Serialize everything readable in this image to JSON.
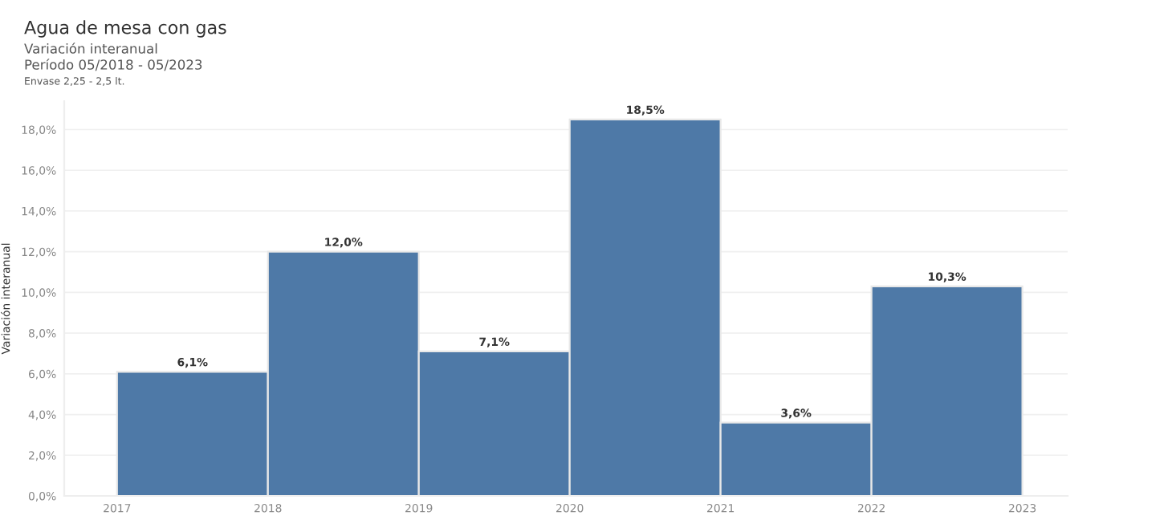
{
  "chart_data": {
    "type": "histogram",
    "title": "Agua de mesa con gas",
    "subtitle": "Variación interanual\nPeríodo 05/2018 - 05/2023",
    "annotations": [
      "Envase 2,25 - 2,5 lt."
    ],
    "ylabel": "Variación interanual",
    "bins": [
      2017,
      2018,
      2019,
      2020,
      2021,
      2022,
      2023
    ],
    "values": [
      6.1,
      12.0,
      7.1,
      18.5,
      3.6,
      10.3
    ],
    "value_labels": [
      "6,1%",
      "12,0%",
      "7,1%",
      "18,5%",
      "3,6%",
      "10,3%"
    ],
    "color": "#4e79a7",
    "xlim": [
      2016.65,
      2023.3
    ],
    "xticks": [
      2017,
      2018,
      2019,
      2020,
      2021,
      2022,
      2023
    ],
    "ylim": [
      0,
      19.4
    ],
    "yticks": [
      {
        "value": 0,
        "label": "0,0%"
      },
      {
        "value": 2,
        "label": "2,0%"
      },
      {
        "value": 4,
        "label": "4,0%"
      },
      {
        "value": 6,
        "label": "6,0%"
      },
      {
        "value": 8,
        "label": "8,0%"
      },
      {
        "value": 10,
        "label": "10,0%"
      },
      {
        "value": 12,
        "label": "12,0%"
      },
      {
        "value": 14,
        "label": "14,0%"
      },
      {
        "value": 16,
        "label": "16,0%"
      },
      {
        "value": 18,
        "label": "18,0%"
      }
    ],
    "grid": "y",
    "legend": false
  }
}
